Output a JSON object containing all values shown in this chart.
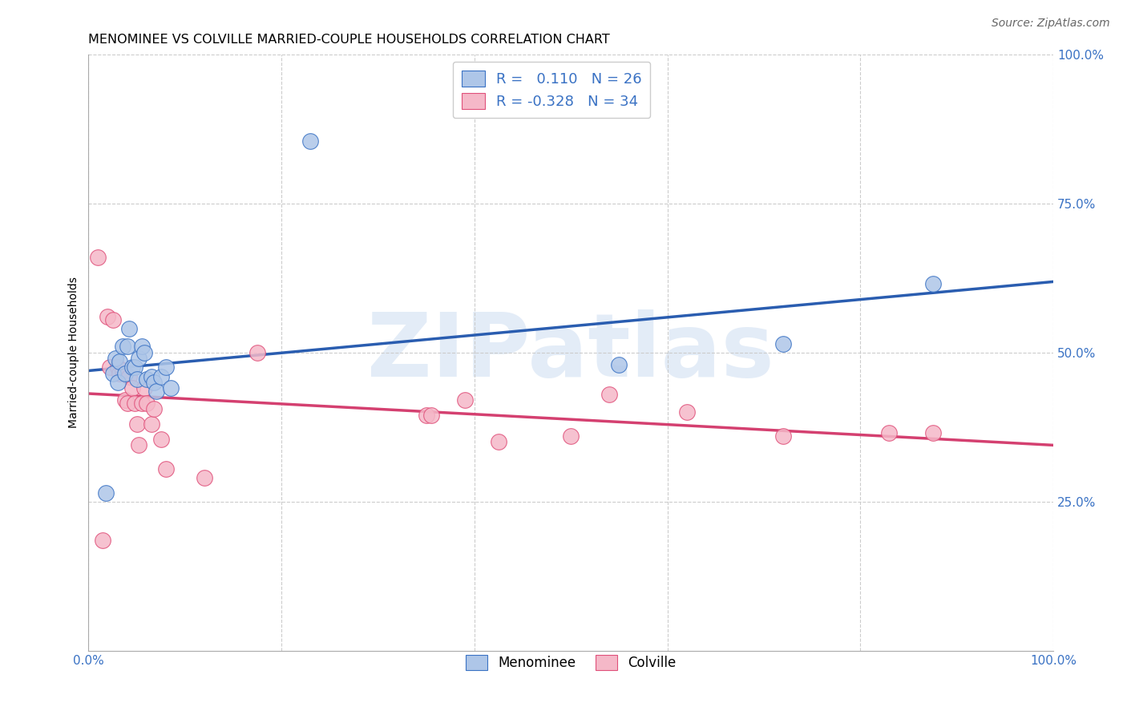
{
  "title": "MENOMINEE VS COLVILLE MARRIED-COUPLE HOUSEHOLDS CORRELATION CHART",
  "source": "Source: ZipAtlas.com",
  "ylabel": "Married-couple Households",
  "watermark": "ZIPatlas",
  "xlim": [
    0.0,
    1.0
  ],
  "ylim": [
    0.0,
    1.0
  ],
  "ytick_positions": [
    0.25,
    0.5,
    0.75,
    1.0
  ],
  "ytick_labels": [
    "25.0%",
    "50.0%",
    "75.0%",
    "100.0%"
  ],
  "xtick_positions": [
    0.0,
    1.0
  ],
  "xtick_labels": [
    "0.0%",
    "100.0%"
  ],
  "blue_color": "#aec6e8",
  "blue_edge_color": "#3a72c4",
  "blue_line_color": "#2a5db0",
  "pink_color": "#f5b8c8",
  "pink_edge_color": "#e0507a",
  "pink_line_color": "#d44070",
  "menominee_x": [
    0.018,
    0.025,
    0.028,
    0.03,
    0.032,
    0.035,
    0.038,
    0.04,
    0.042,
    0.045,
    0.048,
    0.05,
    0.052,
    0.055,
    0.058,
    0.06,
    0.065,
    0.068,
    0.07,
    0.075,
    0.08,
    0.085,
    0.23,
    0.55,
    0.72,
    0.875
  ],
  "menominee_y": [
    0.265,
    0.465,
    0.49,
    0.45,
    0.485,
    0.51,
    0.465,
    0.51,
    0.54,
    0.475,
    0.475,
    0.455,
    0.49,
    0.51,
    0.5,
    0.455,
    0.46,
    0.45,
    0.435,
    0.46,
    0.475,
    0.44,
    0.855,
    0.48,
    0.515,
    0.615
  ],
  "colville_x": [
    0.01,
    0.015,
    0.02,
    0.022,
    0.025,
    0.03,
    0.032,
    0.035,
    0.038,
    0.04,
    0.042,
    0.045,
    0.048,
    0.05,
    0.052,
    0.055,
    0.058,
    0.06,
    0.065,
    0.068,
    0.075,
    0.08,
    0.12,
    0.175,
    0.35,
    0.355,
    0.39,
    0.425,
    0.5,
    0.54,
    0.62,
    0.72,
    0.83,
    0.875
  ],
  "colville_y": [
    0.66,
    0.185,
    0.56,
    0.475,
    0.555,
    0.475,
    0.465,
    0.47,
    0.42,
    0.415,
    0.46,
    0.44,
    0.415,
    0.38,
    0.345,
    0.415,
    0.44,
    0.415,
    0.38,
    0.405,
    0.355,
    0.305,
    0.29,
    0.5,
    0.395,
    0.395,
    0.42,
    0.35,
    0.36,
    0.43,
    0.4,
    0.36,
    0.365,
    0.365
  ],
  "legend_label_blue": "R =   0.110   N = 26",
  "legend_label_pink": "R = -0.328   N = 34",
  "legend_menominee": "Menominee",
  "legend_colville": "Colville",
  "title_fontsize": 11.5,
  "tick_fontsize": 11,
  "ylabel_fontsize": 10,
  "source_fontsize": 10,
  "legend_fontsize": 13,
  "scatter_size": 200
}
